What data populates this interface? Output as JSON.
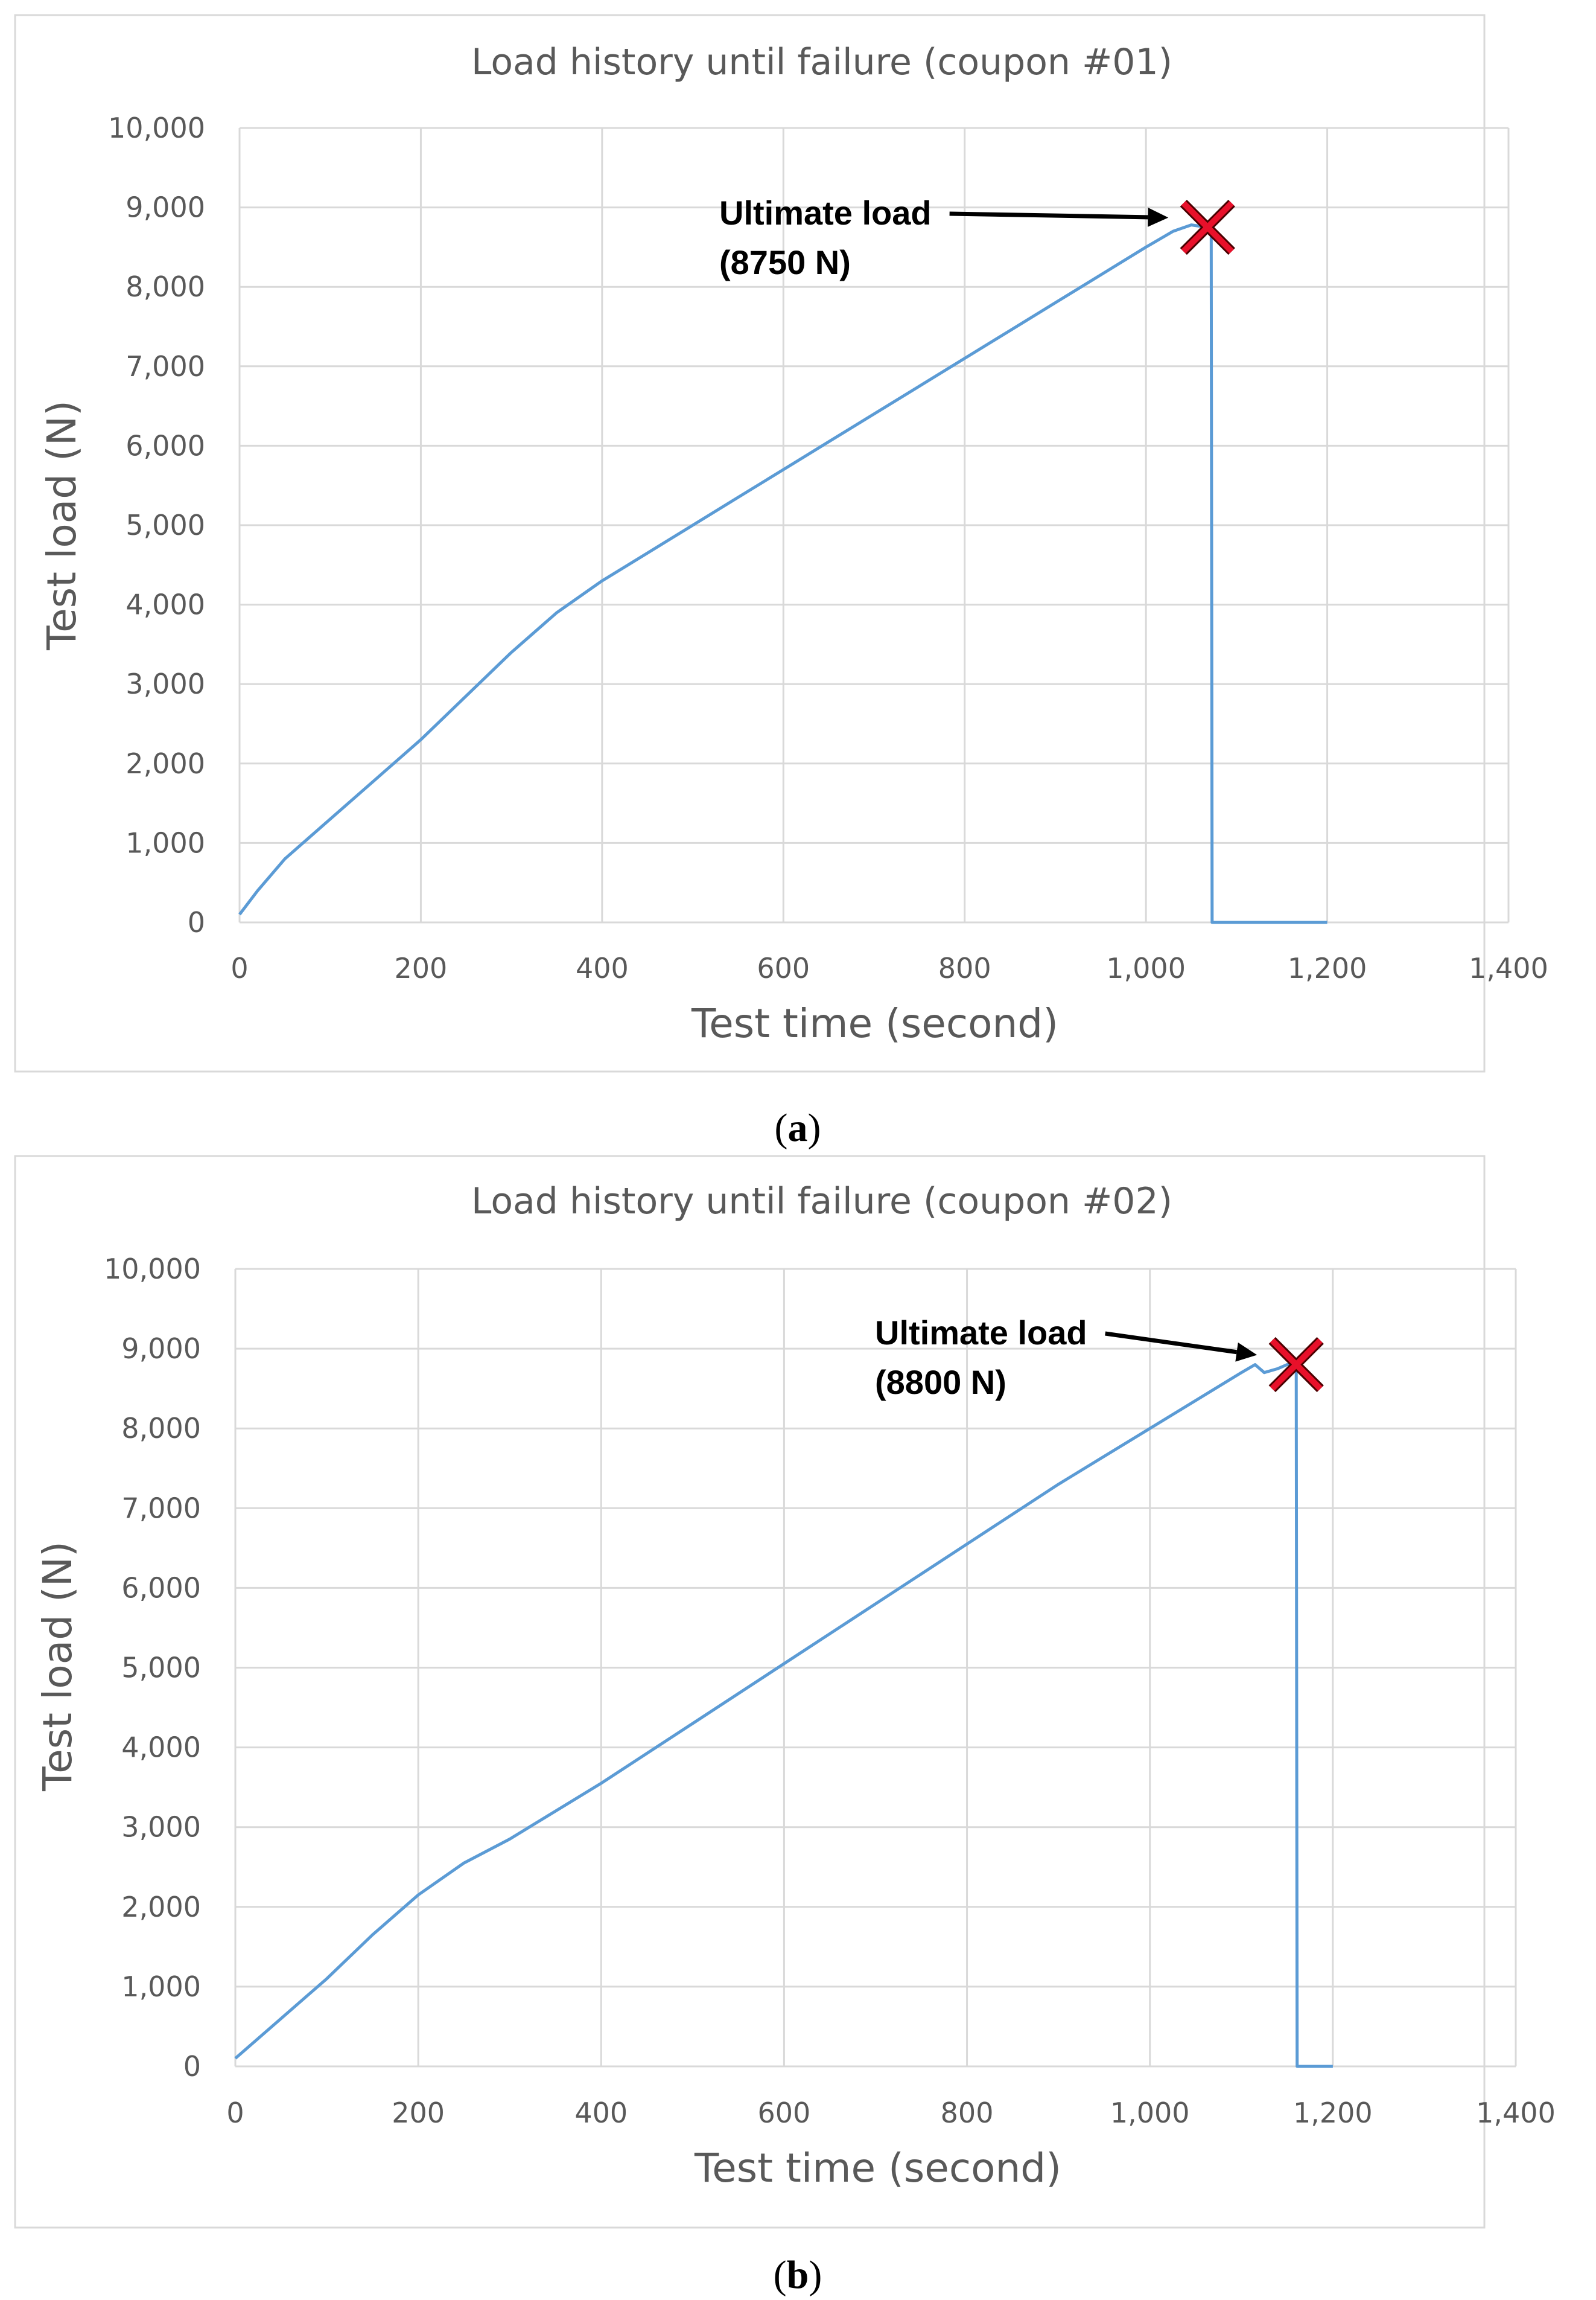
{
  "chart_data": [
    {
      "type": "line",
      "panel_label": "a",
      "title": "Load history until failure (coupon #01)",
      "xlabel": "Test time (second)",
      "ylabel": "Test load (N)",
      "xlim": [
        0,
        1400
      ],
      "ylim": [
        0,
        10000
      ],
      "x_ticks": [
        0,
        200,
        400,
        600,
        800,
        1000,
        1200,
        1400
      ],
      "x_tick_labels": [
        "0",
        "200",
        "400",
        "600",
        "800",
        "1,000",
        "1,200",
        "1,400"
      ],
      "y_ticks": [
        0,
        1000,
        2000,
        3000,
        4000,
        5000,
        6000,
        7000,
        8000,
        9000,
        10000
      ],
      "y_tick_labels": [
        "0",
        "1,000",
        "2,000",
        "3,000",
        "4,000",
        "5,000",
        "6,000",
        "7,000",
        "8,000",
        "9,000",
        "10,000"
      ],
      "grid": true,
      "legend": "none",
      "line_color": "#5b9bd5",
      "marker_color": "#e8102a",
      "series": [
        {
          "x": [
            0,
            20,
            50,
            100,
            150,
            200,
            250,
            300,
            350,
            400,
            450,
            500,
            550,
            600,
            650,
            700,
            750,
            800,
            850,
            900,
            950,
            1000,
            1030,
            1050,
            1068,
            1072,
            1073,
            1100,
            1150,
            1200
          ],
          "y": [
            100,
            400,
            800,
            1300,
            1800,
            2300,
            2850,
            3400,
            3900,
            4300,
            4650,
            5000,
            5350,
            5700,
            6050,
            6400,
            6750,
            7100,
            7450,
            7800,
            8150,
            8500,
            8700,
            8780,
            8750,
            8750,
            0,
            0,
            0,
            0
          ]
        }
      ],
      "annotation": {
        "lines": [
          "Ultimate load",
          "(8750 N)"
        ],
        "target_x": 1068,
        "target_y": 8750
      }
    },
    {
      "type": "line",
      "panel_label": "b",
      "title": "Load history until failure (coupon #02)",
      "xlabel": "Test time (second)",
      "ylabel": "Test load (N)",
      "xlim": [
        0,
        1400
      ],
      "ylim": [
        0,
        10000
      ],
      "x_ticks": [
        0,
        200,
        400,
        600,
        800,
        1000,
        1200,
        1400
      ],
      "x_tick_labels": [
        "0",
        "200",
        "400",
        "600",
        "800",
        "1,000",
        "1,200",
        "1,400"
      ],
      "y_ticks": [
        0,
        1000,
        2000,
        3000,
        4000,
        5000,
        6000,
        7000,
        8000,
        9000,
        10000
      ],
      "y_tick_labels": [
        "0",
        "1,000",
        "2,000",
        "3,000",
        "4,000",
        "5,000",
        "6,000",
        "7,000",
        "8,000",
        "9,000",
        "10,000"
      ],
      "grid": true,
      "legend": "none",
      "line_color": "#5b9bd5",
      "marker_color": "#e8102a",
      "series": [
        {
          "x": [
            0,
            50,
            100,
            150,
            200,
            250,
            300,
            400,
            500,
            600,
            700,
            800,
            900,
            1000,
            1050,
            1100,
            1115,
            1125,
            1140,
            1150,
            1160,
            1161,
            1180,
            1200
          ],
          "y": [
            100,
            600,
            1100,
            1650,
            2150,
            2550,
            2850,
            3550,
            4300,
            5050,
            5800,
            6550,
            7300,
            8000,
            8350,
            8700,
            8800,
            8700,
            8750,
            8800,
            8800,
            0,
            0,
            0
          ]
        }
      ],
      "annotation": {
        "lines": [
          "Ultimate load",
          "(8800 N)"
        ],
        "target_x": 1160,
        "target_y": 8800
      }
    }
  ]
}
